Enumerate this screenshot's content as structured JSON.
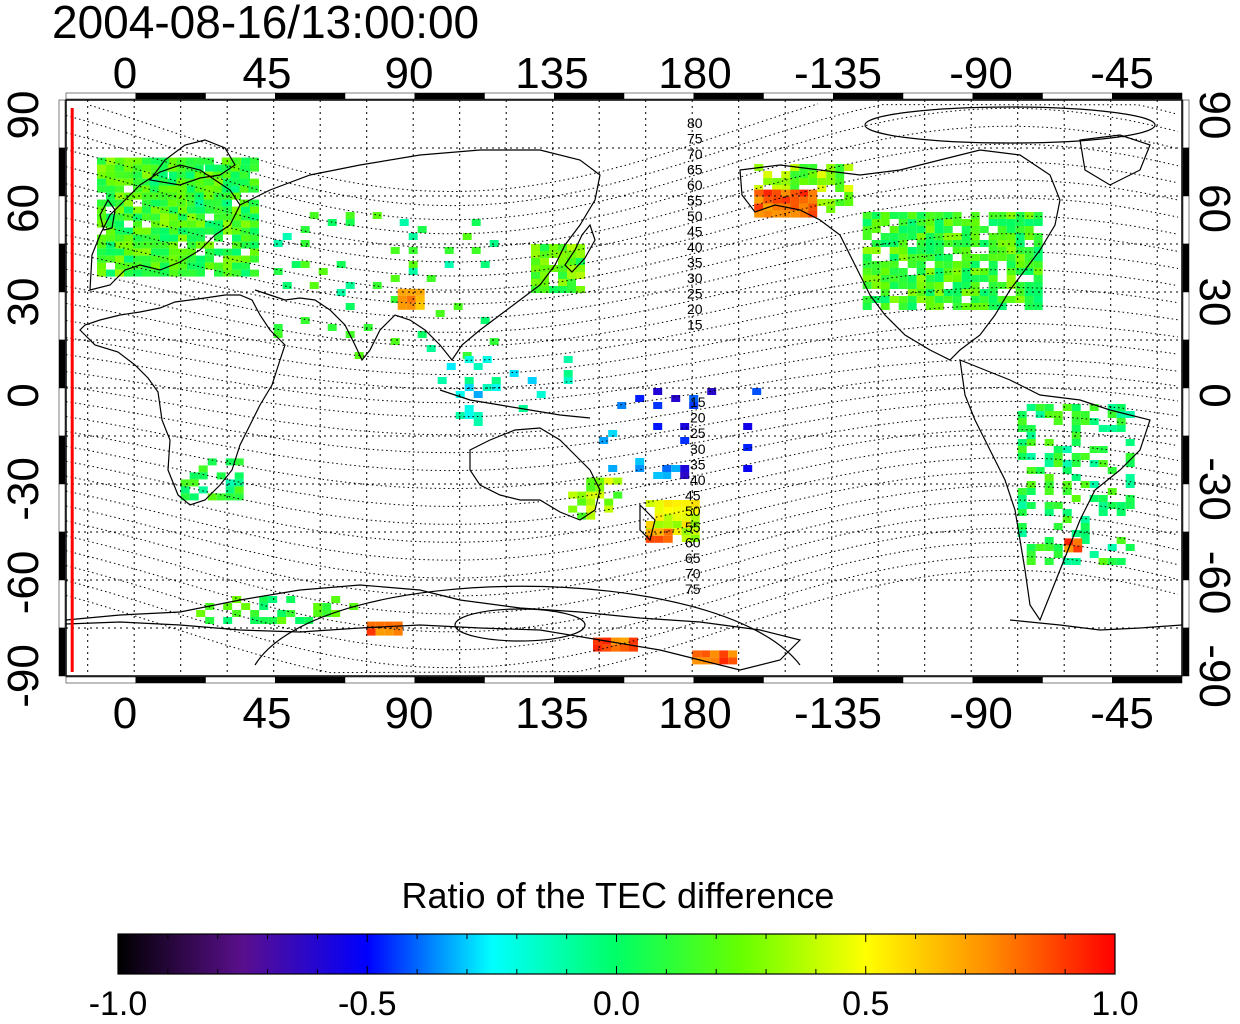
{
  "timestamp": "2004-08-16/13:00:00",
  "colorbar": {
    "title": "Ratio of the TEC difference",
    "min": -1.0,
    "max": 1.0,
    "tick_labels": [
      "-1.0",
      "-0.5",
      "0.0",
      "0.5",
      "1.0"
    ],
    "stops": [
      {
        "value": -1.0,
        "color": "#000000"
      },
      {
        "value": -0.75,
        "color": "#5a0f8c"
      },
      {
        "value": -0.5,
        "color": "#0000ff"
      },
      {
        "value": -0.25,
        "color": "#00ffff"
      },
      {
        "value": 0.0,
        "color": "#00ff66"
      },
      {
        "value": 0.25,
        "color": "#66ff00"
      },
      {
        "value": 0.5,
        "color": "#ffff00"
      },
      {
        "value": 0.75,
        "color": "#ff8c00"
      },
      {
        "value": 1.0,
        "color": "#ff0000"
      }
    ]
  },
  "map": {
    "lon_ticks": [
      "0",
      "45",
      "90",
      "135",
      "180",
      "-135",
      "-90",
      "-45"
    ],
    "lat_ticks": [
      "90",
      "60",
      "30",
      "0",
      "-30",
      "-60",
      "-90"
    ],
    "lat_contour_labels_north": [
      "80",
      "75",
      "70",
      "65",
      "60",
      "55",
      "50",
      "45",
      "40",
      "35",
      "30",
      "25",
      "20",
      "15"
    ],
    "lat_contour_labels_south": [
      "15",
      "20",
      "25",
      "30",
      "35",
      "40",
      "45",
      "50",
      "55",
      "60",
      "65",
      "70",
      "75"
    ],
    "terminator_longitude": -20,
    "terminator_color": "#ff0000"
  },
  "regions": [
    {
      "name": "europe",
      "lon": [
        -12,
        40
      ],
      "lat": [
        35,
        72
      ],
      "value": 0.15,
      "density": 0.9
    },
    {
      "name": "scandinavia",
      "lon": [
        5,
        35
      ],
      "lat": [
        58,
        72
      ],
      "value": 0.1,
      "density": 0.7
    },
    {
      "name": "north-america",
      "lon": [
        -125,
        -68
      ],
      "lat": [
        25,
        55
      ],
      "value": 0.15,
      "density": 0.85
    },
    {
      "name": "alaska",
      "lon": [
        -160,
        -130
      ],
      "lat": [
        55,
        70
      ],
      "value": 0.3,
      "density": 0.7
    },
    {
      "name": "japan",
      "lon": [
        128,
        145
      ],
      "lat": [
        30,
        45
      ],
      "value": 0.2,
      "density": 0.8
    },
    {
      "name": "south-africa",
      "lon": [
        15,
        35
      ],
      "lat": [
        -35,
        -22
      ],
      "value": 0.05,
      "density": 0.6
    },
    {
      "name": "south-america",
      "lon": [
        -75,
        -40
      ],
      "lat": [
        -55,
        -5
      ],
      "value": 0.05,
      "density": 0.35
    },
    {
      "name": "australia-se",
      "lon": [
        140,
        155
      ],
      "lat": [
        -40,
        -28
      ],
      "value": 0.3,
      "density": 0.6
    },
    {
      "name": "new-zealand",
      "lon": [
        165,
        180
      ],
      "lat": [
        -47,
        -35
      ],
      "value": 0.45,
      "density": 0.75
    },
    {
      "name": "asia-scatter",
      "lon": [
        45,
        120
      ],
      "lat": [
        10,
        55
      ],
      "value": 0.05,
      "density": 0.1
    },
    {
      "name": "indonesia",
      "lon": [
        95,
        140
      ],
      "lat": [
        -10,
        10
      ],
      "value": -0.2,
      "density": 0.15
    },
    {
      "name": "pacific-south",
      "lon": [
        150,
        200
      ],
      "lat": [
        -30,
        0
      ],
      "value": -0.45,
      "density": 0.08
    },
    {
      "name": "antarctic-coast",
      "lon": [
        20,
        70
      ],
      "lat": [
        -73,
        -65
      ],
      "value": 0.1,
      "density": 0.3
    }
  ],
  "hot_spots": [
    {
      "name": "alaska-red",
      "lon": [
        -160,
        -140
      ],
      "lat": [
        55,
        62
      ],
      "value": 0.95
    },
    {
      "name": "india-north",
      "lon": [
        85,
        92
      ],
      "lat": [
        26,
        31
      ],
      "value": 0.8
    },
    {
      "name": "new-zealand-red",
      "lon": [
        165,
        173
      ],
      "lat": [
        -47,
        -44
      ],
      "value": 0.9
    },
    {
      "name": "antarctica-red-1",
      "lon": [
        75,
        85
      ],
      "lat": [
        -76,
        -73
      ],
      "value": 0.95
    },
    {
      "name": "antarctica-red-2",
      "lon": [
        148,
        160
      ],
      "lat": [
        -82,
        -78
      ],
      "value": 0.95
    },
    {
      "name": "antarctica-red-3",
      "lon": [
        180,
        192
      ],
      "lat": [
        -85,
        -82
      ],
      "value": 0.95
    },
    {
      "name": "south-america-red",
      "lon": [
        -60,
        -55
      ],
      "lat": [
        -50,
        -47
      ],
      "value": 0.95
    }
  ]
}
